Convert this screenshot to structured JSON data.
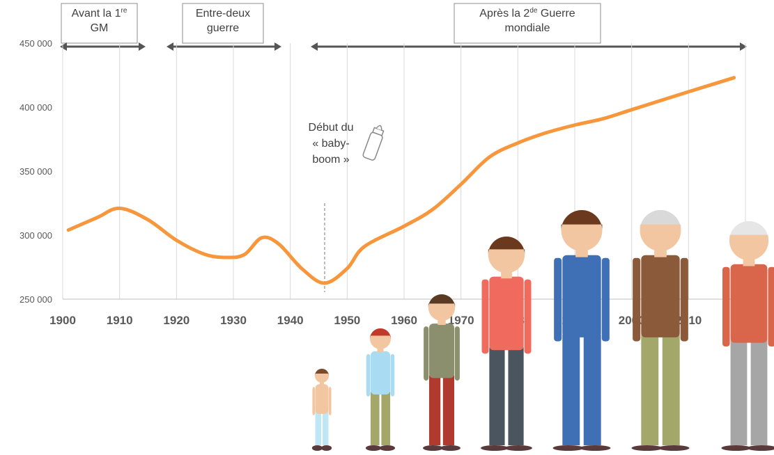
{
  "chart_data": {
    "type": "line",
    "x": [
      1901,
      1906,
      1910,
      1915,
      1920,
      1925,
      1929,
      1932,
      1935,
      1938,
      1942,
      1946,
      1950,
      1953,
      1960,
      1965,
      1970,
      1975,
      1980,
      1985,
      1990,
      1995,
      2000,
      2005,
      2010,
      2018
    ],
    "series": [
      {
        "color": "#f7963b",
        "values": [
          304000,
          313600,
          321000,
          312000,
          296000,
          285000,
          282600,
          285000,
          298000,
          293000,
          274000,
          262500,
          274000,
          291000,
          307000,
          320000,
          339700,
          361000,
          372000,
          380000,
          386000,
          391000,
          398000,
          405000,
          412000,
          423000
        ]
      }
    ],
    "xlim": [
      1900,
      2020
    ],
    "xticks": [
      1900,
      1910,
      1920,
      1930,
      1940,
      1950,
      1960,
      1970,
      1980,
      1990,
      2000,
      2010,
      2020
    ],
    "ylim": [
      250000,
      450000
    ],
    "yticks": [
      {
        "value": 250000,
        "label": "250 000"
      },
      {
        "value": 300000,
        "label": "300 000"
      },
      {
        "value": 350000,
        "label": "350 000"
      },
      {
        "value": 400000,
        "label": "400 000"
      },
      {
        "value": 450000,
        "label": "450 000"
      }
    ],
    "grid": "x",
    "periods": [
      {
        "lines": [
          [
            {
              "text": "Avant la 1"
            },
            {
              "text": "re",
              "sup": true
            }
          ],
          [
            {
              "text": "GM"
            }
          ]
        ]
      },
      {
        "lines": [
          [
            {
              "text": "Entre-deux"
            }
          ],
          [
            {
              "text": "guerre"
            }
          ]
        ]
      },
      {
        "lines": [
          [
            {
              "text": "Après la 2"
            },
            {
              "text": "de",
              "sup": true
            },
            {
              "text": " Guerre"
            }
          ],
          [
            {
              "text": "mondiale"
            }
          ]
        ]
      }
    ],
    "annotation": {
      "lines": [
        "Début du",
        "« baby-",
        "boom »"
      ]
    }
  }
}
